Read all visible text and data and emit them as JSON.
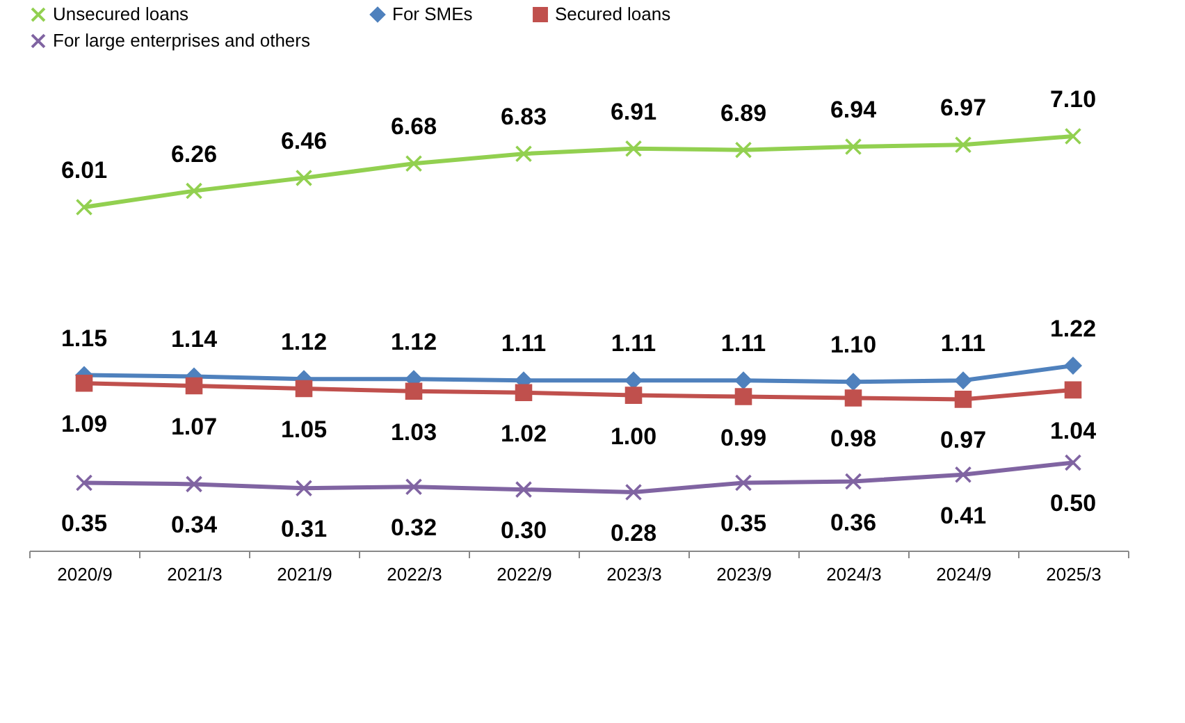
{
  "chart_data": [
    {
      "type": "line",
      "categories": [
        "2020/9",
        "2021/3",
        "2021/9",
        "2022/3",
        "2022/9",
        "2023/3",
        "2023/9",
        "2024/3",
        "2024/9",
        "2025/3"
      ],
      "tick_labels": false,
      "legend": "top",
      "series": [
        {
          "name": "Unsecured loans",
          "color": "#92d050",
          "marker": "cross",
          "values": [
            6.01,
            6.26,
            6.46,
            6.68,
            6.83,
            6.91,
            6.89,
            6.94,
            6.97,
            7.1
          ],
          "value_labels": [
            "6.01",
            "6.26",
            "6.46",
            "6.68",
            "6.83",
            "6.91",
            "6.89",
            "6.94",
            "6.97",
            "7.10"
          ]
        }
      ]
    },
    {
      "type": "line",
      "categories": [
        "2020/9",
        "2021/3",
        "2021/9",
        "2022/3",
        "2022/9",
        "2023/3",
        "2023/9",
        "2024/3",
        "2024/9",
        "2025/3"
      ],
      "tick_labels": "x",
      "legend": "top",
      "series": [
        {
          "name": "For SMEs",
          "color": "#4f81bd",
          "marker": "diamond",
          "values": [
            1.15,
            1.14,
            1.12,
            1.12,
            1.11,
            1.11,
            1.11,
            1.1,
            1.11,
            1.22
          ],
          "value_labels": [
            "1.15",
            "1.14",
            "1.12",
            "1.12",
            "1.11",
            "1.11",
            "1.11",
            "1.10",
            "1.11",
            "1.22"
          ]
        },
        {
          "name": "Secured loans",
          "color": "#c0504d",
          "marker": "square",
          "values": [
            1.09,
            1.07,
            1.05,
            1.03,
            1.02,
            1.0,
            0.99,
            0.98,
            0.97,
            1.04
          ],
          "value_labels": [
            "1.09",
            "1.07",
            "1.05",
            "1.03",
            "1.02",
            "1.00",
            "0.99",
            "0.98",
            "0.97",
            "1.04"
          ]
        },
        {
          "name": "For large enterprises and others",
          "color": "#8064a2",
          "marker": "cross",
          "values": [
            0.35,
            0.34,
            0.31,
            0.32,
            0.3,
            0.28,
            0.35,
            0.36,
            0.41,
            0.5
          ],
          "value_labels": [
            "0.35",
            "0.34",
            "0.31",
            "0.32",
            "0.30",
            "0.28",
            "0.35",
            "0.36",
            "0.41",
            "0.50"
          ]
        }
      ]
    }
  ]
}
